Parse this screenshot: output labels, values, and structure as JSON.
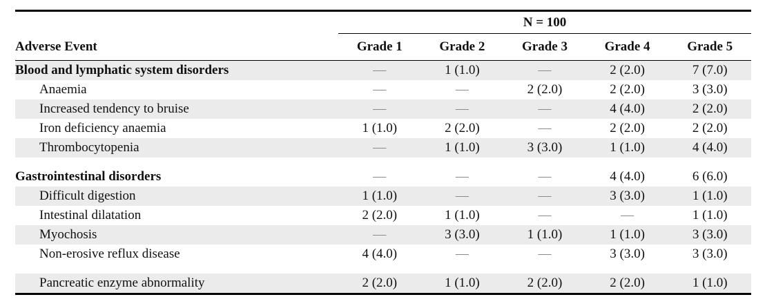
{
  "colors": {
    "text": "#111111",
    "rule": "#000000",
    "stripe": "#ebebeb",
    "muted": "#8a8a8a"
  },
  "table": {
    "spanner": "N = 100",
    "dash_char": "—",
    "columns": [
      "Adverse Event",
      "Grade 1",
      "Grade 2",
      "Grade 3",
      "Grade 4",
      "Grade 5"
    ],
    "rows": [
      {
        "label": "Blood and lymphatic system disorders",
        "cells": [
          "—",
          "1 (1.0)",
          "—",
          "2 (2.0)",
          "7 (7.0)"
        ]
      },
      {
        "label": "Anaemia",
        "cells": [
          "—",
          "—",
          "2 (2.0)",
          "2 (2.0)",
          "3 (3.0)"
        ]
      },
      {
        "label": "Increased tendency to bruise",
        "cells": [
          "—",
          "—",
          "—",
          "4 (4.0)",
          "2 (2.0)"
        ]
      },
      {
        "label": "Iron deficiency anaemia",
        "cells": [
          "1 (1.0)",
          "2 (2.0)",
          "—",
          "2 (2.0)",
          "2 (2.0)"
        ]
      },
      {
        "label": "Thrombocytopenia",
        "cells": [
          "—",
          "1 (1.0)",
          "3 (3.0)",
          "1 (1.0)",
          "4 (4.0)"
        ]
      },
      {
        "label": "Gastrointestinal disorders",
        "cells": [
          "—",
          "—",
          "—",
          "4 (4.0)",
          "6 (6.0)"
        ]
      },
      {
        "label": "Difficult digestion",
        "cells": [
          "1 (1.0)",
          "—",
          "—",
          "3 (3.0)",
          "1 (1.0)"
        ]
      },
      {
        "label": "Intestinal dilatation",
        "cells": [
          "2 (2.0)",
          "1 (1.0)",
          "—",
          "—",
          "1 (1.0)"
        ]
      },
      {
        "label": "Myochosis",
        "cells": [
          "—",
          "3 (3.0)",
          "1 (1.0)",
          "1 (1.0)",
          "3 (3.0)"
        ]
      },
      {
        "label": "Non-erosive reflux disease",
        "cells": [
          "4 (4.0)",
          "—",
          "—",
          "3 (3.0)",
          "3 (3.0)"
        ]
      },
      {
        "label": "Pancreatic enzyme abnormality",
        "cells": [
          "2 (2.0)",
          "1 (1.0)",
          "2 (2.0)",
          "2 (2.0)",
          "1 (1.0)"
        ]
      }
    ]
  }
}
